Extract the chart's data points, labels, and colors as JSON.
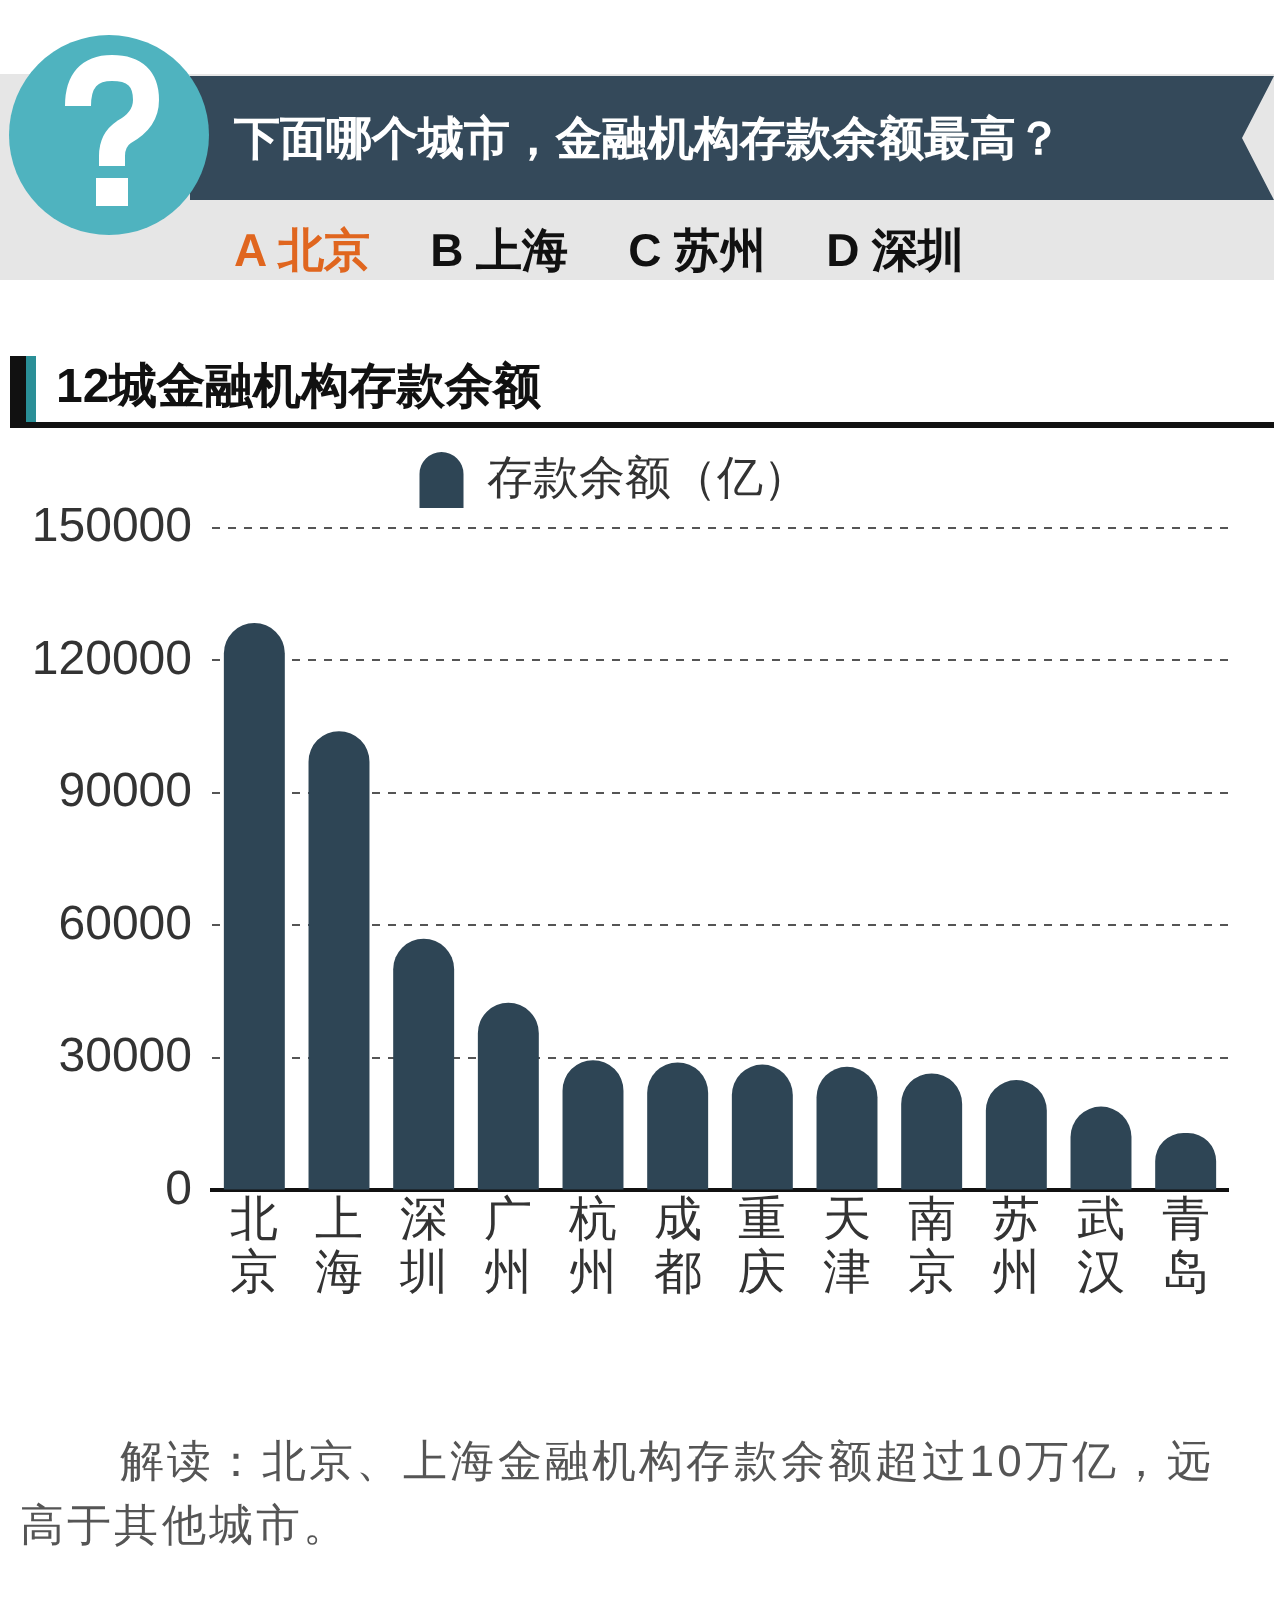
{
  "chart_data": {
    "type": "bar",
    "title": "12城金融机构存款余额",
    "annotations": [
      "下面哪个城市，金融机构存款余额最高？",
      "A 北京",
      "B 上海",
      "C 苏州",
      "D 深圳",
      "解读：北京、上海金融机构存款余额超过10万亿，远高于其他城市。"
    ],
    "categories": [
      "北京",
      "上海",
      "深圳",
      "广州",
      "杭州",
      "成都",
      "重庆",
      "天津",
      "南京",
      "苏州",
      "武汉",
      "青岛"
    ],
    "series": [
      {
        "name": "存款余额（亿）",
        "color": "#2e4555",
        "values": [
          128500,
          104000,
          57000,
          42500,
          29500,
          29000,
          28500,
          28000,
          26500,
          25000,
          19000,
          13000
        ]
      }
    ],
    "ylim": [
      0,
      150000
    ],
    "yticks": [
      0,
      30000,
      60000,
      90000,
      120000,
      150000
    ],
    "grid": "y",
    "legend": "top"
  }
}
